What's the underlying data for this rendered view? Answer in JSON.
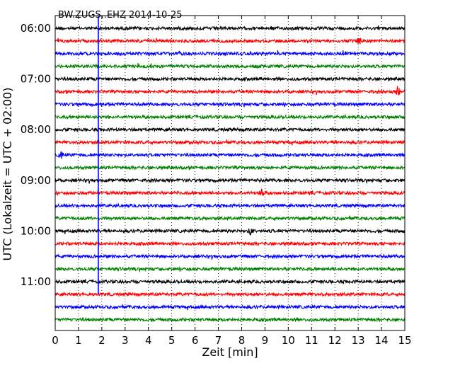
{
  "chart_data": {
    "type": "line",
    "subtype": "seismogram-dayplot",
    "title": "BW.ZUGS..EHZ 2014-10-25",
    "xlabel": "Zeit  [min]",
    "ylabel": "UTC (Lokalzeit = UTC + 02:00)",
    "xlim": [
      0,
      15
    ],
    "x_ticks": [
      "0",
      "1",
      "2",
      "3",
      "4",
      "5",
      "6",
      "7",
      "8",
      "9",
      "10",
      "11",
      "12",
      "13",
      "14",
      "15"
    ],
    "row_start_time": [
      "06:00",
      "06:15",
      "06:30",
      "06:45",
      "07:00",
      "07:15",
      "07:30",
      "07:45",
      "08:00",
      "08:15",
      "08:30",
      "08:45",
      "09:00",
      "09:15",
      "09:30",
      "09:45",
      "10:00",
      "10:15",
      "10:30",
      "10:45",
      "11:00",
      "11:15",
      "11:30",
      "11:45"
    ],
    "y_tick_labels": [
      "06:00",
      "07:00",
      "08:00",
      "09:00",
      "10:00",
      "11:00"
    ],
    "y_tick_rows": [
      0,
      4,
      8,
      12,
      16,
      20
    ],
    "color_cycle": [
      "#000000",
      "#ff0000",
      "#0000ff",
      "#008000"
    ],
    "grid": "vertical-dotted",
    "event_marker": {
      "x_minute": 1.85,
      "color": "#0000ff",
      "from_time": "05:45",
      "to_time": "11:15"
    },
    "notable_spikes": [
      {
        "time": "06:15",
        "minute": 13.05
      },
      {
        "time": "09:15",
        "minute": 8.85
      },
      {
        "time": "07:15",
        "minute": 14.7
      },
      {
        "time": "08:30",
        "minute": 0.25
      },
      {
        "time": "10:00",
        "minute": 8.4
      }
    ]
  }
}
